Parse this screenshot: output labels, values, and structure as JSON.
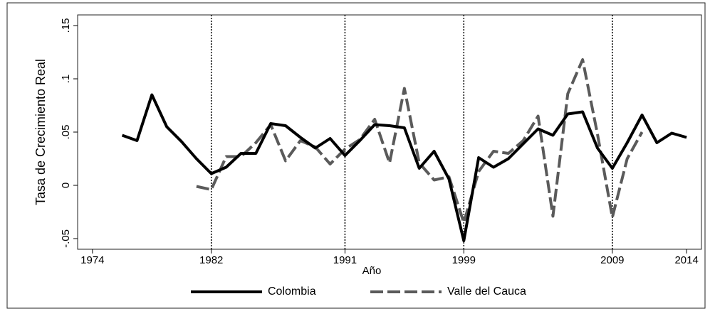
{
  "chart_data": {
    "type": "line",
    "x_label": "Año",
    "y_label": "Tasa de Crecimiento Real",
    "x": [
      1976,
      1977,
      1978,
      1979,
      1980,
      1981,
      1982,
      1983,
      1984,
      1985,
      1986,
      1987,
      1988,
      1989,
      1990,
      1991,
      1992,
      1993,
      1994,
      1995,
      1996,
      1997,
      1998,
      1999,
      2000,
      2001,
      2002,
      2003,
      2004,
      2005,
      2006,
      2007,
      2008,
      2009,
      2010,
      2011,
      2012,
      2013,
      2014
    ],
    "series": [
      {
        "name": "Colombia",
        "color": "#000000",
        "dash": "solid",
        "values": [
          0.047,
          0.042,
          0.085,
          0.055,
          0.041,
          0.025,
          0.011,
          0.017,
          0.03,
          0.03,
          0.058,
          0.056,
          0.045,
          0.035,
          0.044,
          0.028,
          0.042,
          0.057,
          0.056,
          0.054,
          0.016,
          0.032,
          0.006,
          -0.052,
          0.026,
          0.017,
          0.025,
          0.039,
          0.053,
          0.047,
          0.067,
          0.069,
          0.035,
          0.016,
          0.04,
          0.066,
          0.04,
          0.049,
          0.045
        ]
      },
      {
        "name": "Valle del Cauca",
        "color": "#5a5a5a",
        "dash": "dashed",
        "values": [
          null,
          null,
          null,
          null,
          null,
          -0.001,
          -0.004,
          0.027,
          0.027,
          0.04,
          0.057,
          0.023,
          0.042,
          0.036,
          0.02,
          0.034,
          0.043,
          0.062,
          0.021,
          0.091,
          0.021,
          0.005,
          0.008,
          -0.035,
          0.013,
          0.032,
          0.03,
          0.042,
          0.065,
          -0.029,
          0.086,
          0.118,
          0.048,
          -0.03,
          0.025,
          0.05,
          null,
          null,
          null
        ]
      }
    ],
    "xlim": [
      1973,
      2015
    ],
    "xticks": [
      1974,
      1982,
      1991,
      1999,
      2009,
      2014
    ],
    "ylim": [
      -0.06,
      0.16
    ],
    "yticks": [
      {
        "value": -0.05,
        "label": "-.05"
      },
      0,
      {
        "value": 0.05,
        "label": ".05"
      },
      {
        "value": 0.1,
        "label": ".1"
      },
      {
        "value": 0.15,
        "label": ".15"
      }
    ],
    "vlines": [
      1982,
      1991,
      1999,
      2009
    ],
    "legend": "bottom"
  }
}
